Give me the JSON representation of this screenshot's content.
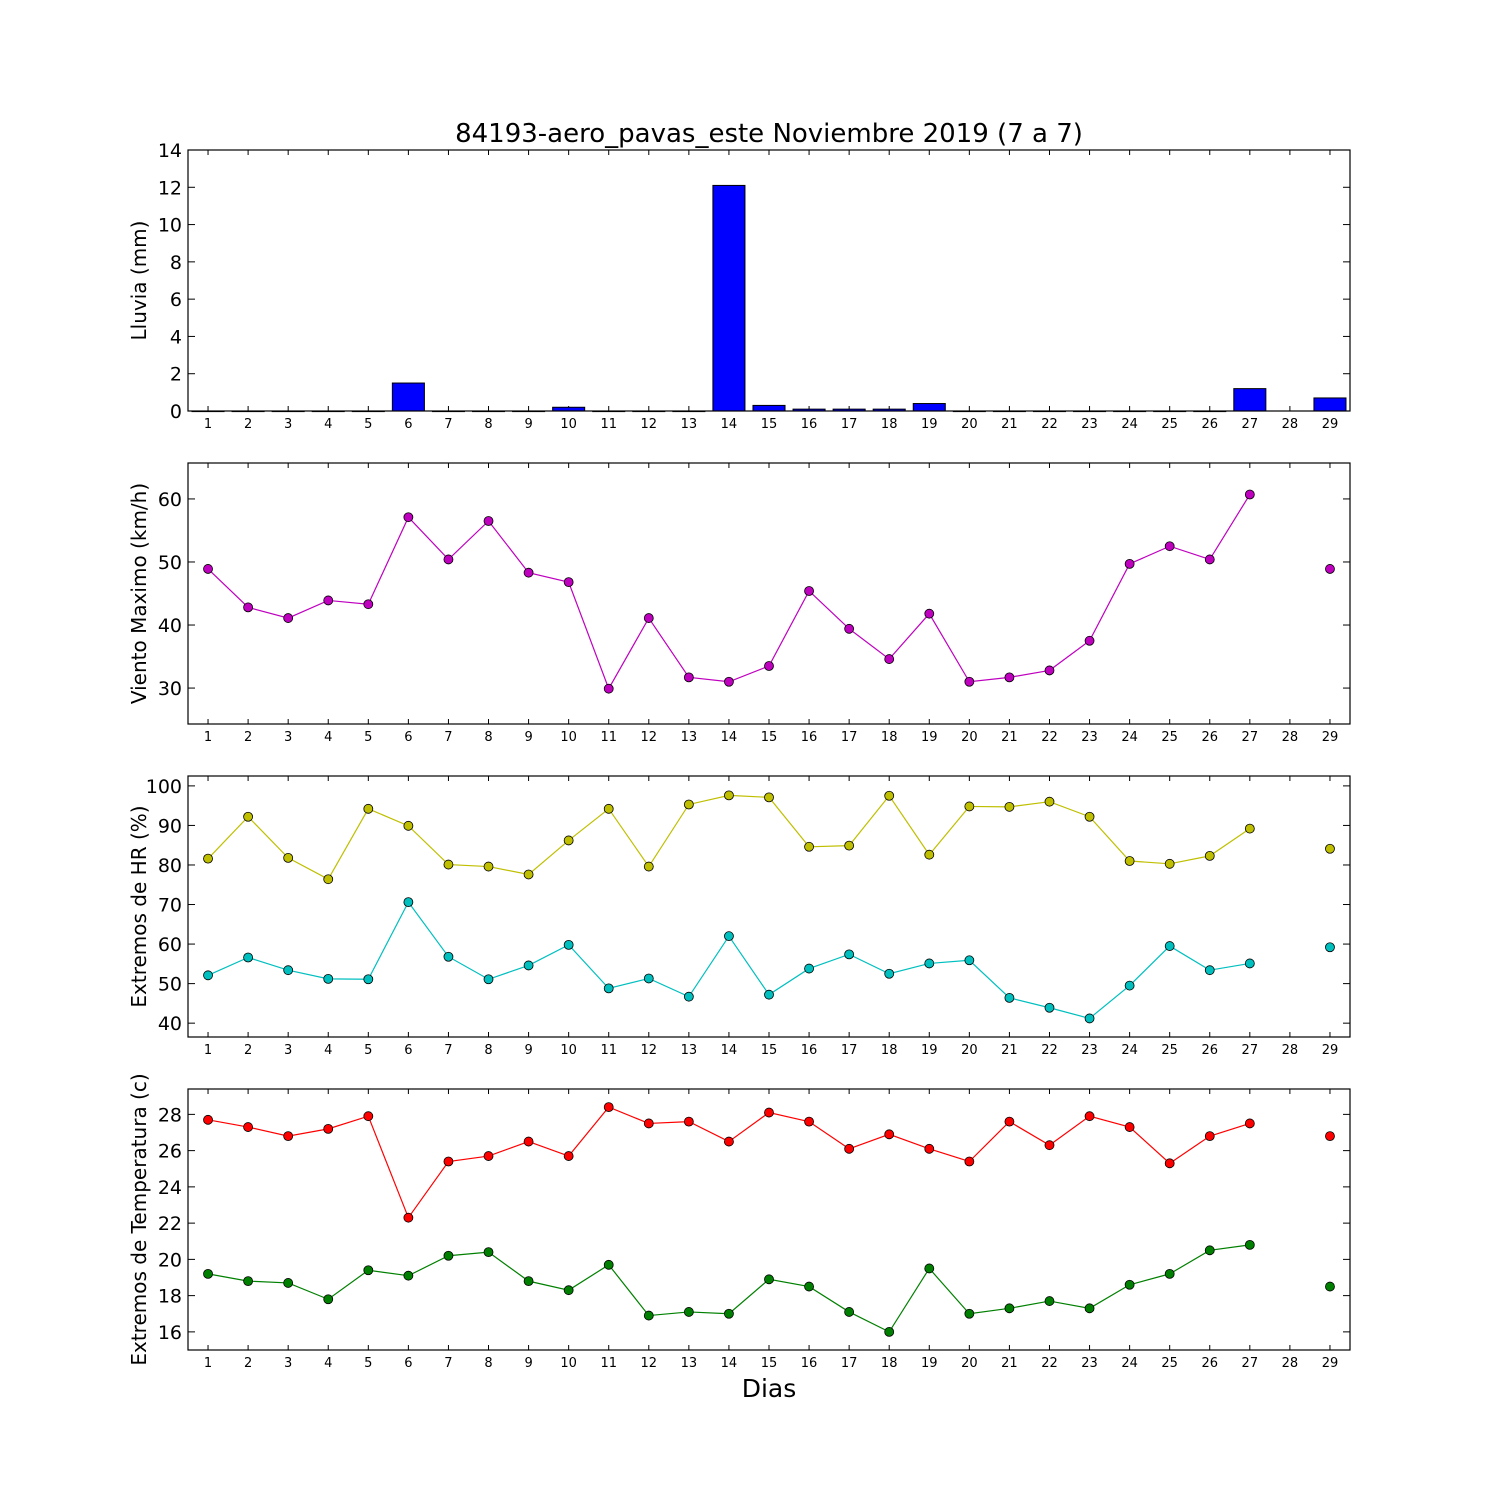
{
  "chart_data": {
    "title": "84193-aero_pavas_este Noviembre 2019  (7 a 7)",
    "xlabel": "Dias",
    "days": [
      1,
      2,
      3,
      4,
      5,
      6,
      7,
      8,
      9,
      10,
      11,
      12,
      13,
      14,
      15,
      16,
      17,
      18,
      19,
      20,
      21,
      22,
      23,
      24,
      25,
      26,
      27,
      28,
      29
    ],
    "panels": [
      {
        "type": "bar",
        "ylabel": "Lluvia (mm)",
        "ylim": [
          0,
          14
        ],
        "yticks": [
          0,
          2,
          4,
          6,
          8,
          10,
          12,
          14
        ],
        "series": [
          {
            "color": "#0000ff",
            "values": [
              0,
              0,
              0,
              0,
              0,
              1.5,
              0,
              0,
              0,
              0.2,
              0,
              0,
              0,
              12.1,
              0.3,
              0.1,
              0.1,
              0.1,
              0.4,
              0,
              0,
              0,
              0,
              0,
              0,
              0,
              1.2,
              null,
              0.7
            ]
          }
        ]
      },
      {
        "type": "line",
        "ylabel": "Viento Maximo (km/h)",
        "ylim": [
          24.3,
          65.7
        ],
        "yticks": [
          30,
          40,
          50,
          60
        ],
        "series": [
          {
            "color": "#bf00bf",
            "values": [
              48.9,
              42.8,
              41.1,
              43.9,
              43.3,
              57.1,
              50.4,
              56.5,
              48.3,
              46.8,
              29.9,
              41.1,
              31.7,
              31.0,
              33.5,
              45.4,
              39.4,
              34.6,
              41.8,
              31.0,
              31.7,
              32.8,
              37.5,
              49.7,
              52.5,
              50.4,
              60.7,
              null,
              48.9
            ]
          }
        ]
      },
      {
        "type": "line",
        "ylabel": "Extremos de HR (%)",
        "ylim": [
          36.5,
          102.5
        ],
        "yticks": [
          40,
          50,
          60,
          70,
          80,
          90,
          100
        ],
        "series": [
          {
            "color": "#bfbf00",
            "values": [
              81.6,
              92.2,
              81.8,
              76.4,
              94.2,
              89.9,
              80.1,
              79.6,
              77.6,
              86.2,
              94.2,
              79.6,
              95.3,
              97.6,
              97.1,
              84.6,
              84.9,
              97.5,
              82.6,
              94.8,
              94.7,
              96.0,
              92.2,
              81.0,
              80.3,
              82.3,
              89.2,
              null,
              84.1
            ]
          },
          {
            "color": "#00bfbf",
            "values": [
              52.1,
              56.6,
              53.4,
              51.2,
              51.1,
              70.6,
              56.8,
              51.1,
              54.6,
              59.8,
              48.8,
              51.3,
              46.7,
              62.0,
              47.2,
              53.8,
              57.4,
              52.5,
              55.1,
              55.9,
              46.4,
              43.9,
              41.2,
              49.5,
              59.5,
              53.4,
              55.1,
              null,
              59.2
            ]
          }
        ]
      },
      {
        "type": "line",
        "ylabel": "Extremos de Temperatura (c)",
        "ylim": [
          15.0,
          29.4
        ],
        "yticks": [
          16,
          18,
          20,
          22,
          24,
          26,
          28
        ],
        "series": [
          {
            "color": "#ff0000",
            "values": [
              27.7,
              27.3,
              26.8,
              27.2,
              27.9,
              22.3,
              25.4,
              25.7,
              26.5,
              25.7,
              28.4,
              27.5,
              27.6,
              26.5,
              28.1,
              27.6,
              26.1,
              26.9,
              26.1,
              25.4,
              27.6,
              26.3,
              27.9,
              27.3,
              25.3,
              26.8,
              27.5,
              null,
              26.8
            ]
          },
          {
            "color": "#008000",
            "values": [
              19.2,
              18.8,
              18.7,
              17.8,
              19.4,
              19.1,
              20.2,
              20.4,
              18.8,
              18.3,
              19.7,
              16.9,
              17.1,
              17.0,
              18.9,
              18.5,
              17.1,
              16.0,
              19.5,
              17.0,
              17.3,
              17.7,
              17.3,
              18.6,
              19.2,
              20.5,
              20.8,
              null,
              18.5
            ]
          }
        ]
      }
    ]
  }
}
